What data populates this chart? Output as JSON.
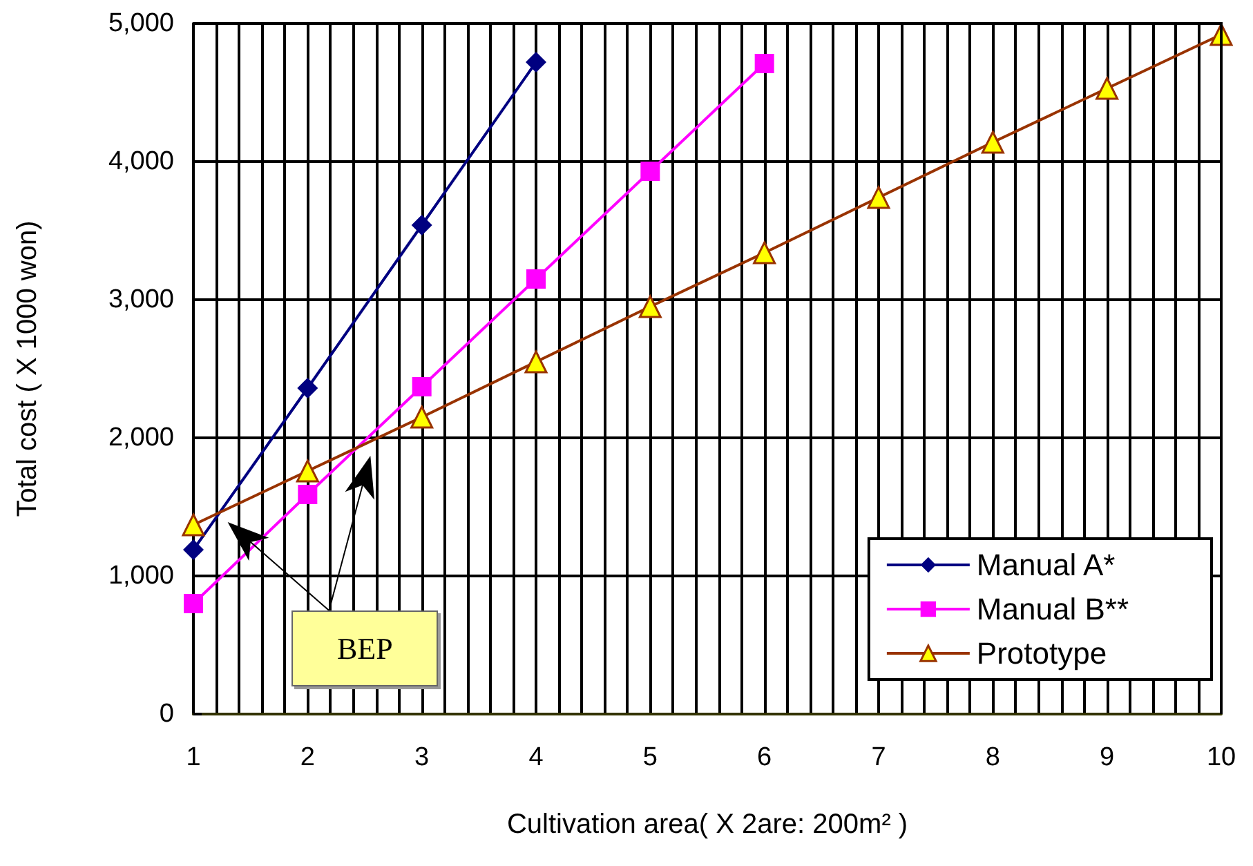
{
  "chart_data": {
    "type": "line",
    "xlabel": "Cultivation area( X 2are: 200m² )",
    "ylabel": "Total cost ( X 1000 won)",
    "annotations": [
      "BEP"
    ],
    "x": [
      1,
      2,
      3,
      4,
      5,
      6,
      7,
      8,
      9,
      10
    ],
    "series": [
      {
        "name": "Manual A*",
        "color": "#000080",
        "marker": "diamond",
        "x": [
          1,
          2,
          3,
          4
        ],
        "values": [
          1190,
          2360,
          3540,
          4720
        ]
      },
      {
        "name": "Manual B**",
        "color": "#ff00ff",
        "marker": "square",
        "x": [
          1,
          2,
          3,
          4,
          5,
          6
        ],
        "values": [
          800,
          1590,
          2370,
          3150,
          3930,
          4710
        ]
      },
      {
        "name": "Prototype",
        "color": "#993300",
        "marker": "triangle",
        "colors": [
          "#ffff00",
          "#ffff00",
          "#ffff00",
          "#ffff00",
          "#ffff00",
          "#ffff00",
          "#ffff00",
          "#ffff00",
          "#ffff00",
          "#ffff00"
        ],
        "values": [
          1370,
          1760,
          2150,
          2550,
          2950,
          3340,
          3740,
          4140,
          4530,
          4920
        ]
      }
    ],
    "xlim": [
      1,
      10
    ],
    "xticks": [
      1,
      {
        "value": 1.2,
        "label": null
      },
      {
        "value": 1.4,
        "label": null
      },
      {
        "value": 1.6,
        "label": null
      },
      {
        "value": 1.8,
        "label": null
      },
      2,
      {
        "value": 2.2,
        "label": null
      },
      {
        "value": 2.4,
        "label": null
      },
      {
        "value": 2.6,
        "label": null
      },
      {
        "value": 2.8,
        "label": null
      },
      3,
      {
        "value": 3.2,
        "label": null
      },
      {
        "value": 3.4,
        "label": null
      },
      {
        "value": 3.6,
        "label": null
      },
      {
        "value": 3.8,
        "label": null
      },
      4,
      {
        "value": 4.2,
        "label": null
      },
      {
        "value": 4.4,
        "label": null
      },
      {
        "value": 4.6,
        "label": null
      },
      {
        "value": 4.8,
        "label": null
      },
      5,
      {
        "value": 5.2,
        "label": null
      },
      {
        "value": 5.4,
        "label": null
      },
      {
        "value": 5.6,
        "label": null
      },
      {
        "value": 5.8,
        "label": null
      },
      6,
      {
        "value": 6.2,
        "label": null
      },
      {
        "value": 6.4,
        "label": null
      },
      {
        "value": 6.6,
        "label": null
      },
      {
        "value": 6.8,
        "label": null
      },
      7,
      {
        "value": 7.2,
        "label": null
      },
      {
        "value": 7.4,
        "label": null
      },
      {
        "value": 7.6,
        "label": null
      },
      {
        "value": 7.8,
        "label": null
      },
      8,
      {
        "value": 8.2,
        "label": null
      },
      {
        "value": 8.4,
        "label": null
      },
      {
        "value": 8.6,
        "label": null
      },
      {
        "value": 8.8,
        "label": null
      },
      9,
      {
        "value": 9.2,
        "label": null
      },
      {
        "value": 9.4,
        "label": null
      },
      {
        "value": 9.6,
        "label": null
      },
      {
        "value": 9.8,
        "label": null
      },
      10
    ],
    "ylim": [
      0,
      5000
    ],
    "yticks": [
      0,
      {
        "value": 1000,
        "label": "1,000"
      },
      {
        "value": 2000,
        "label": "2,000"
      },
      {
        "value": 3000,
        "label": "3,000"
      },
      {
        "value": 4000,
        "label": "4,000"
      },
      {
        "value": 5000,
        "label": "5,000"
      }
    ],
    "grid": true,
    "legend": "bottom right",
    "line_style": "solid"
  }
}
